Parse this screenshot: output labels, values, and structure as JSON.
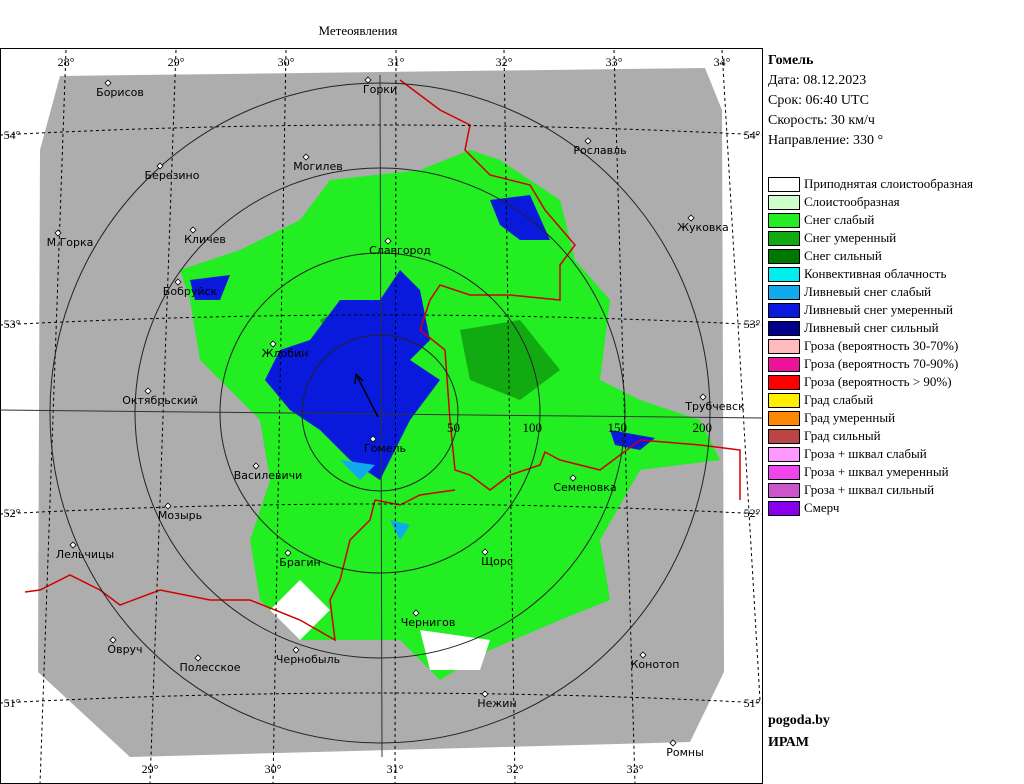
{
  "title": "Метеоявления",
  "info": {
    "station": "Гомель",
    "date": "Дата: 08.12.2023",
    "time": "Срок: 06:40 UTC",
    "speed": "Скорость: 30  км/ч",
    "direction": "Направление: 330 °"
  },
  "legend": [
    {
      "label": "Приподнятая слоистообразная",
      "color": "#ffffff"
    },
    {
      "label": "Слоистообразная",
      "color": "#ccffcc"
    },
    {
      "label": "Снег слабый",
      "color": "#22ee22"
    },
    {
      "label": "Снег умеренный",
      "color": "#11aa11"
    },
    {
      "label": "Снег сильный",
      "color": "#007700"
    },
    {
      "label": "Конвективная облачность",
      "color": "#00eeee"
    },
    {
      "label": "Ливневый снег слабый",
      "color": "#11aaee"
    },
    {
      "label": "Ливневый снег умеренный",
      "color": "#0a1add"
    },
    {
      "label": "Ливневый снег сильный",
      "color": "#000088"
    },
    {
      "label": "Гроза (вероятность 30-70%)",
      "color": "#ffbbbb"
    },
    {
      "label": "Гроза (вероятность 70-90%)",
      "color": "#ee1199"
    },
    {
      "label": "Гроза (вероятность > 90%)",
      "color": "#ff0000"
    },
    {
      "label": "Град слабый",
      "color": "#ffee00"
    },
    {
      "label": "Град умеренный",
      "color": "#ff8800"
    },
    {
      "label": "Град сильный",
      "color": "#bb4444"
    },
    {
      "label": "Гроза + шквал слабый",
      "color": "#ff99ff"
    },
    {
      "label": "Гроза + шквал умеренный",
      "color": "#ee44ee"
    },
    {
      "label": "Гроза + шквал сильный",
      "color": "#cc55cc"
    },
    {
      "label": "Смерч",
      "color": "#8800ee"
    }
  ],
  "top_lon": [
    "28°",
    "29°",
    "30°",
    "31°",
    "32°",
    "33°",
    "34°"
  ],
  "bottom_lon": [
    "29°",
    "30°",
    "31°",
    "32°",
    "33°"
  ],
  "lat": [
    "54°",
    "53°",
    "52°",
    "51°"
  ],
  "rings": [
    50,
    100,
    150,
    200
  ],
  "cities": [
    "Борисов",
    "Горки",
    "Могилев",
    "Рославль",
    "Березино",
    "М.Горка",
    "Кличев",
    "Жуковка",
    "Славгород",
    "Бобруйск",
    "Жлобин",
    "Октябрьский",
    "Трубчевск",
    "Гомель",
    "Василевичи",
    "Семеновка",
    "Мозырь",
    "Лельчицы",
    "Брагин",
    "Щорс",
    "Чернигов",
    "Овруч",
    "Полесское",
    "Чернобыль",
    "Конотоп",
    "Нежин",
    "Ромны"
  ],
  "footer": {
    "site": "pogoda.by",
    "org": "ИРАМ"
  }
}
